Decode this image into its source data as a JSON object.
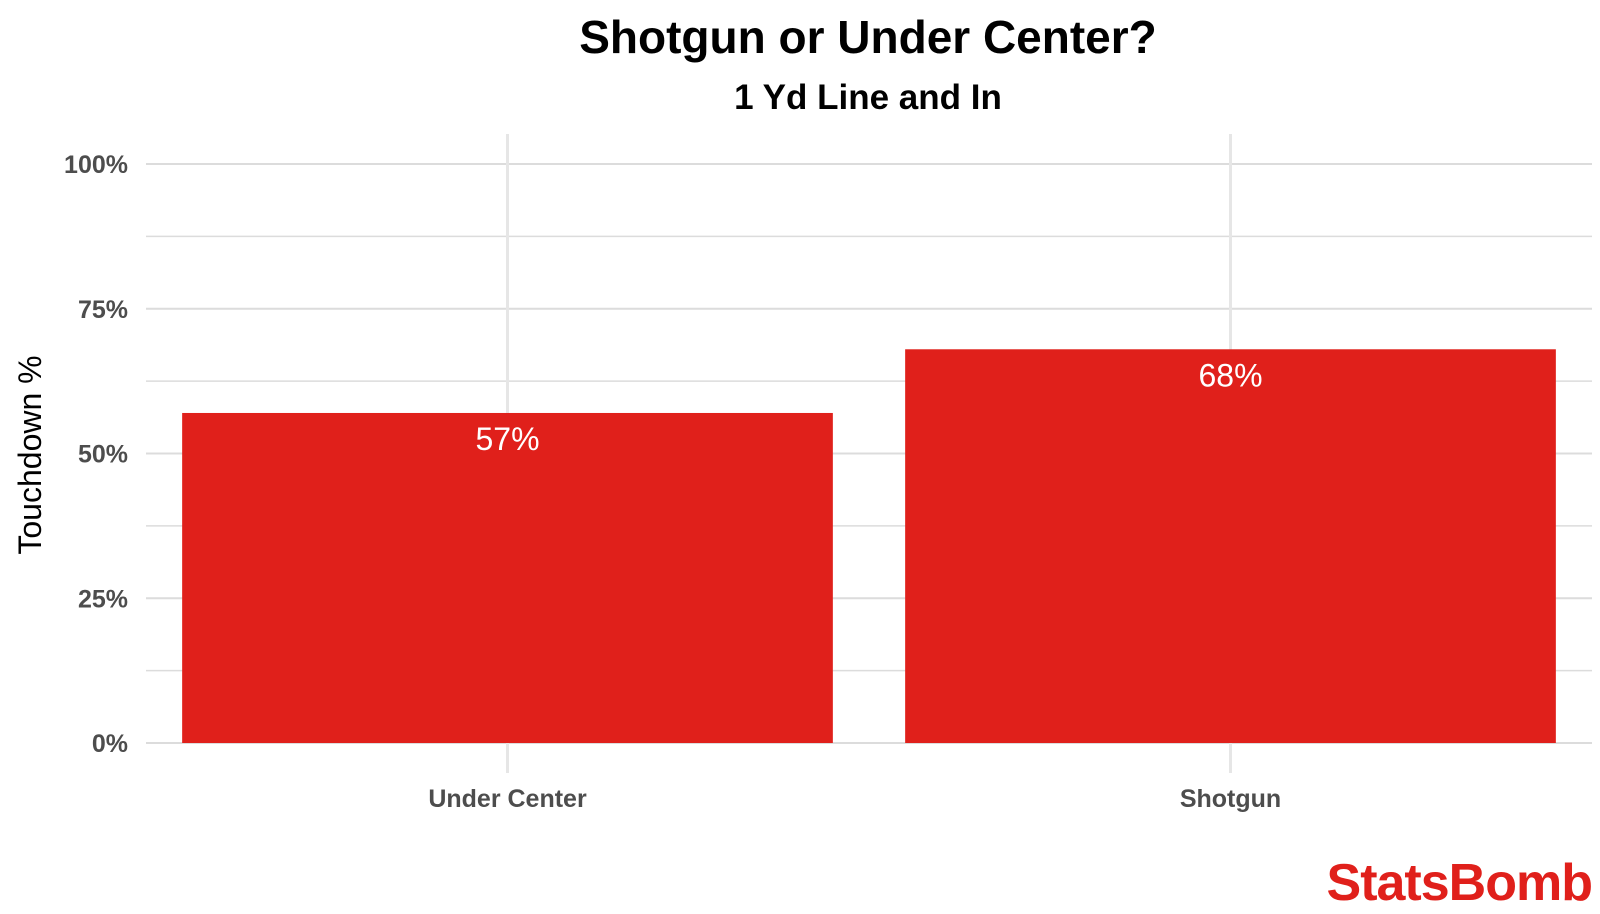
{
  "chart_data": {
    "type": "bar",
    "title": "Shotgun or Under Center?",
    "subtitle": "1 Yd Line and In",
    "ylabel": "Touchdown %",
    "xlabel": "",
    "categories": [
      "Under Center",
      "Shotgun"
    ],
    "values": [
      57,
      68
    ],
    "data_labels": [
      "57%",
      "68%"
    ],
    "ylim": [
      0,
      100
    ],
    "yticks": [
      0,
      25,
      50,
      75,
      100
    ],
    "ytick_labels": [
      "0%",
      "25%",
      "50%",
      "75%",
      "100%"
    ],
    "bar_color": "#e0201b",
    "grid": true,
    "legend": false
  },
  "brand": {
    "name": "StatsBomb",
    "color": "#e0201b"
  }
}
